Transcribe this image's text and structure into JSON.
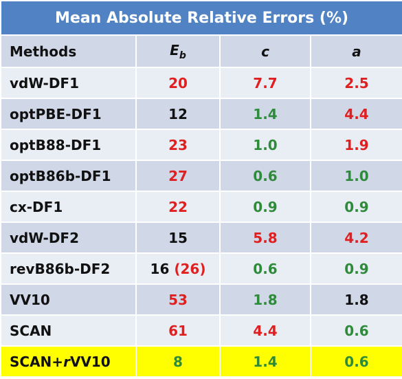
{
  "title": "Mean Absolute Relative Errors (%)",
  "colors": {
    "header_bg": "#5183c4",
    "row_dark": "#d0d8e8",
    "row_light": "#e9edf4",
    "highlight": "#ffff00",
    "red": "#e02020",
    "green": "#2e8b3a",
    "black": "#111111"
  },
  "chart_data": {
    "type": "table",
    "title": "Mean Absolute Relative Errors (%)",
    "columns": {
      "method": "Methods",
      "eb_main": "E",
      "eb_sub": "b",
      "c": "c",
      "a": "a"
    },
    "rows": [
      {
        "method": "vdW-DF1",
        "eb": "20",
        "eb_color": "red",
        "c": "7.7",
        "c_color": "red",
        "a": "2.5",
        "a_color": "red"
      },
      {
        "method": "optPBE-DF1",
        "eb": "12",
        "eb_color": "black",
        "c": "1.4",
        "c_color": "green",
        "a": "4.4",
        "a_color": "red"
      },
      {
        "method": "optB88-DF1",
        "eb": "23",
        "eb_color": "red",
        "c": "1.0",
        "c_color": "green",
        "a": "1.9",
        "a_color": "red"
      },
      {
        "method": "optB86b-DF1",
        "eb": "27",
        "eb_color": "red",
        "c": "0.6",
        "c_color": "green",
        "a": "1.0",
        "a_color": "green"
      },
      {
        "method": "cx-DF1",
        "eb": "22",
        "eb_color": "red",
        "c": "0.9",
        "c_color": "green",
        "a": "0.9",
        "a_color": "green"
      },
      {
        "method": "vdW-DF2",
        "eb": "15",
        "eb_color": "black",
        "c": "5.8",
        "c_color": "red",
        "a": "4.2",
        "a_color": "red"
      },
      {
        "method": "revB86b-DF2",
        "eb": "16",
        "eb_color": "black",
        "eb_extra": "(26)",
        "eb_extra_color": "red",
        "c": "0.6",
        "c_color": "green",
        "a": "0.9",
        "a_color": "green"
      },
      {
        "method": "VV10",
        "eb": "53",
        "eb_color": "red",
        "c": "1.8",
        "c_color": "green",
        "a": "1.8",
        "a_color": "black"
      },
      {
        "method": "SCAN",
        "eb": "61",
        "eb_color": "red",
        "c": "4.4",
        "c_color": "red",
        "a": "0.6",
        "a_color": "green"
      },
      {
        "method_prefix": "SCAN+",
        "method_italic": "r",
        "method_suffix": "VV10",
        "eb": "8",
        "eb_color": "green",
        "c": "1.4",
        "c_color": "green",
        "a": "0.6",
        "a_color": "green",
        "highlight": true
      }
    ]
  }
}
